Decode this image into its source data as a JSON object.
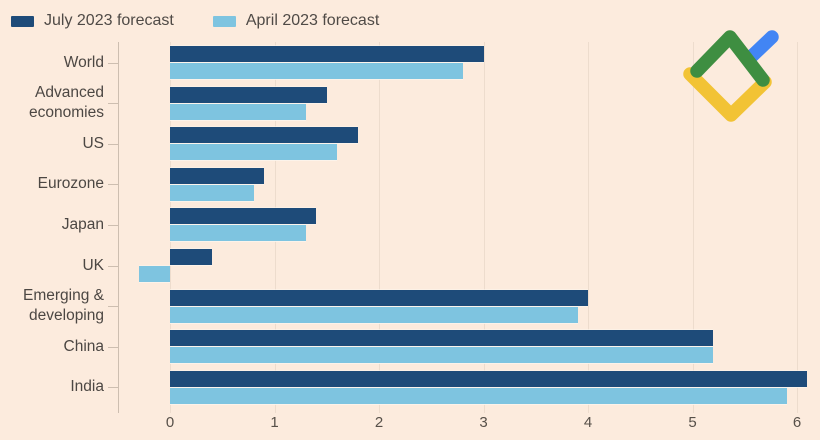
{
  "page": {
    "background_color": "#fcebdd"
  },
  "legend": {
    "items": [
      {
        "label": "July 2023 forecast",
        "color": "#1e4b79"
      },
      {
        "label": "April 2023 forecast",
        "color": "#7ec4e0"
      }
    ]
  },
  "logo": {
    "name": "litefinance-logo",
    "colors": {
      "green": "#3e8e41",
      "yellow": "#f2c335",
      "blue": "#4285f4"
    }
  },
  "chart_data": {
    "type": "bar",
    "orientation": "horizontal",
    "title": "",
    "xlabel": "",
    "ylabel": "",
    "categories": [
      "World",
      "Advanced economies",
      "US",
      "Eurozone",
      "Japan",
      "UK",
      "Emerging & developing",
      "China",
      "India"
    ],
    "series": [
      {
        "name": "July 2023 forecast",
        "color": "#1e4b79",
        "values": [
          3.0,
          1.5,
          1.8,
          0.9,
          1.4,
          0.4,
          4.0,
          5.2,
          6.1
        ]
      },
      {
        "name": "April 2023 forecast",
        "color": "#7ec4e0",
        "values": [
          2.8,
          1.3,
          1.6,
          0.8,
          1.3,
          -0.3,
          3.9,
          5.2,
          5.9
        ]
      }
    ],
    "x_ticks": [
      "0",
      "1",
      "2",
      "3",
      "4",
      "5",
      "6"
    ],
    "xlim": [
      -0.5,
      6.2
    ],
    "grid": true,
    "legend_position": "top-left",
    "gridline_color": "#eddccd",
    "axis_line_color": "#cdbeb0",
    "label_color": "#4c4743"
  }
}
